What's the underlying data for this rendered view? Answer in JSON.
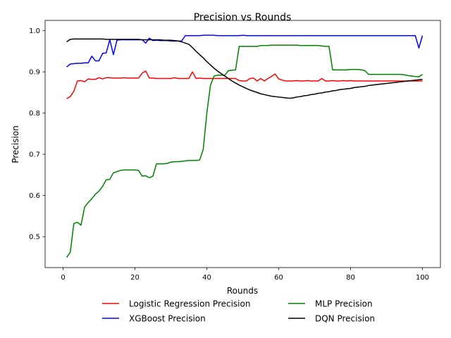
{
  "chart_data": {
    "type": "line",
    "title": "Precision vs Rounds",
    "xlabel": "Rounds",
    "ylabel": "Precision",
    "xlim": [
      -5,
      105
    ],
    "ylim": [
      0.425,
      1.025
    ],
    "xticks": [
      0,
      20,
      40,
      60,
      80,
      100
    ],
    "yticks": [
      0.5,
      0.6,
      0.7,
      0.8,
      0.9,
      1.0
    ],
    "xtick_labels": [
      "0",
      "20",
      "40",
      "60",
      "80",
      "100"
    ],
    "ytick_labels": [
      "0.5",
      "0.6",
      "0.7",
      "0.8",
      "0.9",
      "1.0"
    ],
    "grid": false,
    "legend_position": "below plot, two columns",
    "series": [
      {
        "name": "Logistic Regression Precision",
        "color": "#ff0000",
        "x": [
          1,
          2,
          3,
          4,
          5,
          6,
          7,
          8,
          9,
          10,
          11,
          12,
          13,
          14,
          15,
          16,
          17,
          18,
          19,
          20,
          21,
          22,
          23,
          24,
          25,
          26,
          27,
          28,
          29,
          30,
          31,
          32,
          33,
          34,
          35,
          36,
          37,
          38,
          39,
          40,
          41,
          42,
          43,
          44,
          45,
          46,
          47,
          48,
          49,
          50,
          51,
          52,
          53,
          54,
          55,
          56,
          57,
          58,
          59,
          60,
          61,
          62,
          63,
          64,
          65,
          66,
          67,
          68,
          69,
          70,
          71,
          72,
          73,
          74,
          75,
          76,
          77,
          78,
          79,
          80,
          81,
          82,
          83,
          84,
          85,
          86,
          87,
          88,
          89,
          90,
          91,
          92,
          93,
          94,
          95,
          96,
          97,
          98,
          99,
          100
        ],
        "y": [
          0.835,
          0.84,
          0.853,
          0.878,
          0.879,
          0.876,
          0.883,
          0.882,
          0.882,
          0.886,
          0.883,
          0.886,
          0.886,
          0.885,
          0.885,
          0.885,
          0.886,
          0.885,
          0.885,
          0.885,
          0.885,
          0.897,
          0.902,
          0.885,
          0.885,
          0.884,
          0.884,
          0.884,
          0.884,
          0.884,
          0.886,
          0.884,
          0.884,
          0.884,
          0.884,
          0.9,
          0.884,
          0.885,
          0.884,
          0.884,
          0.884,
          0.884,
          0.884,
          0.884,
          0.884,
          0.884,
          0.884,
          0.884,
          0.879,
          0.878,
          0.878,
          0.884,
          0.885,
          0.878,
          0.884,
          0.878,
          0.884,
          0.889,
          0.895,
          0.883,
          0.88,
          0.878,
          0.878,
          0.878,
          0.879,
          0.878,
          0.878,
          0.879,
          0.878,
          0.878,
          0.878,
          0.884,
          0.878,
          0.878,
          0.879,
          0.878,
          0.878,
          0.879,
          0.878,
          0.879,
          0.878,
          0.878,
          0.878,
          0.878,
          0.878,
          0.878,
          0.878,
          0.878,
          0.878,
          0.878,
          0.878,
          0.878,
          0.878,
          0.878,
          0.878,
          0.878,
          0.878,
          0.878,
          0.878,
          0.878
        ]
      },
      {
        "name": "XGBoost Precision",
        "color": "#0000ff",
        "x": [
          1,
          2,
          3,
          4,
          5,
          6,
          7,
          8,
          9,
          10,
          11,
          12,
          13,
          14,
          15,
          16,
          17,
          18,
          19,
          20,
          21,
          22,
          23,
          24,
          25,
          26,
          27,
          28,
          29,
          30,
          31,
          32,
          33,
          34,
          35,
          36,
          37,
          38,
          39,
          40,
          41,
          42,
          43,
          44,
          45,
          46,
          47,
          48,
          49,
          50,
          51,
          52,
          53,
          54,
          55,
          56,
          57,
          58,
          59,
          60,
          61,
          62,
          63,
          64,
          65,
          66,
          67,
          68,
          69,
          70,
          71,
          72,
          73,
          74,
          75,
          76,
          77,
          78,
          79,
          80,
          81,
          82,
          83,
          84,
          85,
          86,
          87,
          88,
          89,
          90,
          91,
          92,
          93,
          94,
          95,
          96,
          97,
          98,
          99,
          100
        ],
        "y": [
          0.912,
          0.919,
          0.92,
          0.921,
          0.921,
          0.922,
          0.922,
          0.938,
          0.927,
          0.927,
          0.945,
          0.946,
          0.978,
          0.942,
          0.977,
          0.978,
          0.978,
          0.978,
          0.978,
          0.978,
          0.978,
          0.978,
          0.97,
          0.982,
          0.976,
          0.977,
          0.976,
          0.976,
          0.976,
          0.975,
          0.975,
          0.975,
          0.975,
          0.988,
          0.988,
          0.988,
          0.988,
          0.988,
          0.989,
          0.989,
          0.989,
          0.989,
          0.988,
          0.988,
          0.988,
          0.988,
          0.988,
          0.988,
          0.988,
          0.989,
          0.988,
          0.988,
          0.988,
          0.988,
          0.988,
          0.988,
          0.988,
          0.988,
          0.988,
          0.988,
          0.988,
          0.988,
          0.988,
          0.988,
          0.988,
          0.988,
          0.988,
          0.988,
          0.988,
          0.988,
          0.988,
          0.988,
          0.988,
          0.988,
          0.988,
          0.988,
          0.988,
          0.988,
          0.988,
          0.988,
          0.988,
          0.988,
          0.988,
          0.988,
          0.988,
          0.988,
          0.988,
          0.988,
          0.988,
          0.988,
          0.988,
          0.988,
          0.988,
          0.988,
          0.988,
          0.988,
          0.988,
          0.988,
          0.958,
          0.988
        ]
      },
      {
        "name": "MLP Precision",
        "color": "#008000",
        "x": [
          1,
          2,
          3,
          4,
          5,
          6,
          7,
          8,
          9,
          10,
          11,
          12,
          13,
          14,
          15,
          16,
          17,
          18,
          19,
          20,
          21,
          22,
          23,
          24,
          25,
          26,
          27,
          28,
          29,
          30,
          31,
          32,
          33,
          34,
          35,
          36,
          37,
          38,
          39,
          40,
          41,
          42,
          43,
          44,
          45,
          46,
          47,
          48,
          49,
          50,
          51,
          52,
          53,
          54,
          55,
          56,
          57,
          58,
          59,
          60,
          61,
          62,
          63,
          64,
          65,
          66,
          67,
          68,
          69,
          70,
          71,
          72,
          73,
          74,
          75,
          76,
          77,
          78,
          79,
          80,
          81,
          82,
          83,
          84,
          85,
          86,
          87,
          88,
          89,
          90,
          91,
          92,
          93,
          94,
          95,
          96,
          97,
          98,
          99,
          100
        ],
        "y": [
          0.45,
          0.462,
          0.532,
          0.535,
          0.528,
          0.572,
          0.583,
          0.592,
          0.603,
          0.611,
          0.622,
          0.638,
          0.639,
          0.655,
          0.658,
          0.661,
          0.662,
          0.662,
          0.662,
          0.662,
          0.661,
          0.647,
          0.648,
          0.643,
          0.647,
          0.677,
          0.677,
          0.677,
          0.678,
          0.681,
          0.682,
          0.682,
          0.683,
          0.684,
          0.685,
          0.685,
          0.685,
          0.686,
          0.712,
          0.8,
          0.867,
          0.89,
          0.892,
          0.892,
          0.892,
          0.903,
          0.904,
          0.905,
          0.962,
          0.962,
          0.962,
          0.962,
          0.962,
          0.962,
          0.964,
          0.964,
          0.964,
          0.965,
          0.965,
          0.965,
          0.965,
          0.965,
          0.965,
          0.965,
          0.965,
          0.964,
          0.964,
          0.964,
          0.964,
          0.964,
          0.964,
          0.963,
          0.962,
          0.962,
          0.905,
          0.905,
          0.905,
          0.905,
          0.905,
          0.906,
          0.906,
          0.906,
          0.905,
          0.903,
          0.894,
          0.894,
          0.894,
          0.894,
          0.894,
          0.894,
          0.894,
          0.894,
          0.894,
          0.894,
          0.893,
          0.891,
          0.89,
          0.889,
          0.888,
          0.894
        ]
      },
      {
        "name": "DQN Precision",
        "color": "#000000",
        "x": [
          1,
          2,
          3,
          4,
          5,
          6,
          7,
          8,
          9,
          10,
          11,
          12,
          13,
          14,
          15,
          16,
          17,
          18,
          19,
          20,
          21,
          22,
          23,
          24,
          25,
          26,
          27,
          28,
          29,
          30,
          31,
          32,
          33,
          34,
          35,
          36,
          37,
          38,
          39,
          40,
          41,
          42,
          43,
          44,
          45,
          46,
          47,
          48,
          49,
          50,
          51,
          52,
          53,
          54,
          55,
          56,
          57,
          58,
          59,
          60,
          61,
          62,
          63,
          64,
          65,
          66,
          67,
          68,
          69,
          70,
          71,
          72,
          73,
          74,
          75,
          76,
          77,
          78,
          79,
          80,
          81,
          82,
          83,
          84,
          85,
          86,
          87,
          88,
          89,
          90,
          91,
          92,
          93,
          94,
          95,
          96,
          97,
          98,
          99,
          100
        ],
        "y": [
          0.973,
          0.979,
          0.98,
          0.98,
          0.98,
          0.98,
          0.98,
          0.98,
          0.98,
          0.98,
          0.98,
          0.979,
          0.979,
          0.979,
          0.979,
          0.979,
          0.979,
          0.979,
          0.979,
          0.979,
          0.979,
          0.978,
          0.978,
          0.978,
          0.978,
          0.978,
          0.978,
          0.977,
          0.977,
          0.977,
          0.976,
          0.975,
          0.973,
          0.97,
          0.967,
          0.959,
          0.95,
          0.942,
          0.934,
          0.925,
          0.917,
          0.909,
          0.902,
          0.896,
          0.89,
          0.884,
          0.878,
          0.873,
          0.868,
          0.864,
          0.86,
          0.856,
          0.853,
          0.85,
          0.847,
          0.845,
          0.843,
          0.841,
          0.84,
          0.839,
          0.838,
          0.837,
          0.836,
          0.837,
          0.839,
          0.84,
          0.842,
          0.843,
          0.845,
          0.846,
          0.848,
          0.849,
          0.851,
          0.852,
          0.854,
          0.855,
          0.857,
          0.858,
          0.859,
          0.86,
          0.862,
          0.863,
          0.864,
          0.865,
          0.867,
          0.868,
          0.869,
          0.87,
          0.871,
          0.872,
          0.873,
          0.874,
          0.875,
          0.876,
          0.877,
          0.878,
          0.879,
          0.88,
          0.881,
          0.882
        ]
      }
    ]
  }
}
